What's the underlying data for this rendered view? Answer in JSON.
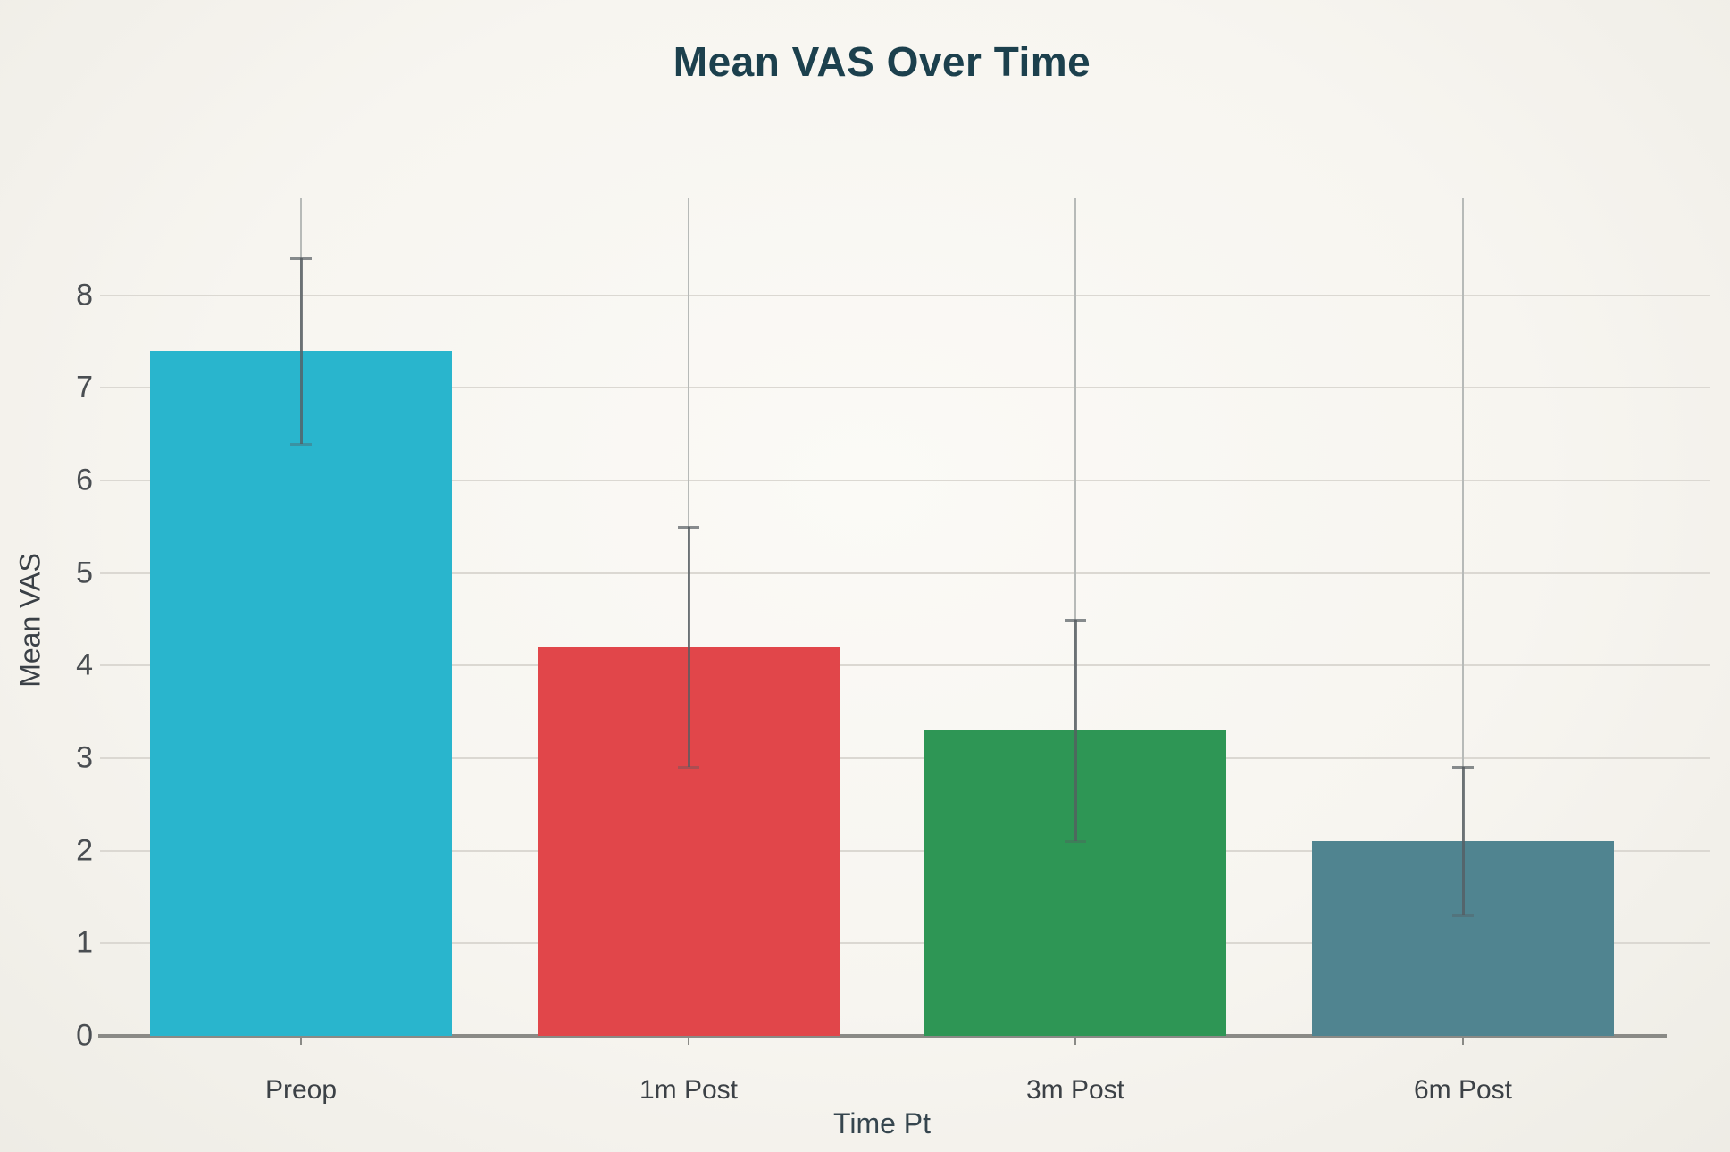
{
  "chart_data": {
    "type": "bar",
    "title": "Mean VAS Over Time",
    "xlabel": "Time Pt",
    "ylabel": "Mean VAS",
    "categories": [
      "Preop",
      "1m Post",
      "3m Post",
      "6m Post"
    ],
    "values": [
      7.4,
      4.2,
      3.3,
      2.1
    ],
    "error_sd": [
      1.0,
      1.3,
      1.2,
      0.8
    ],
    "error_low": [
      6.4,
      2.9,
      2.1,
      1.3
    ],
    "error_high": [
      8.4,
      5.5,
      4.5,
      2.9
    ],
    "bar_colors": [
      "#29b5cd",
      "#e1464a",
      "#2e9655",
      "#508490"
    ],
    "yticks": [
      0,
      1,
      2,
      3,
      4,
      5,
      6,
      7,
      8
    ],
    "ylim": [
      0,
      9.05
    ],
    "grid": "horizontal-and-vertical",
    "legend": "none",
    "background": "#f7f5f0",
    "title_color": "#1c404d",
    "axis_color": "#8a8a86",
    "gridline_color": "#dbd8d2",
    "error_bar_color": "#565c61"
  }
}
